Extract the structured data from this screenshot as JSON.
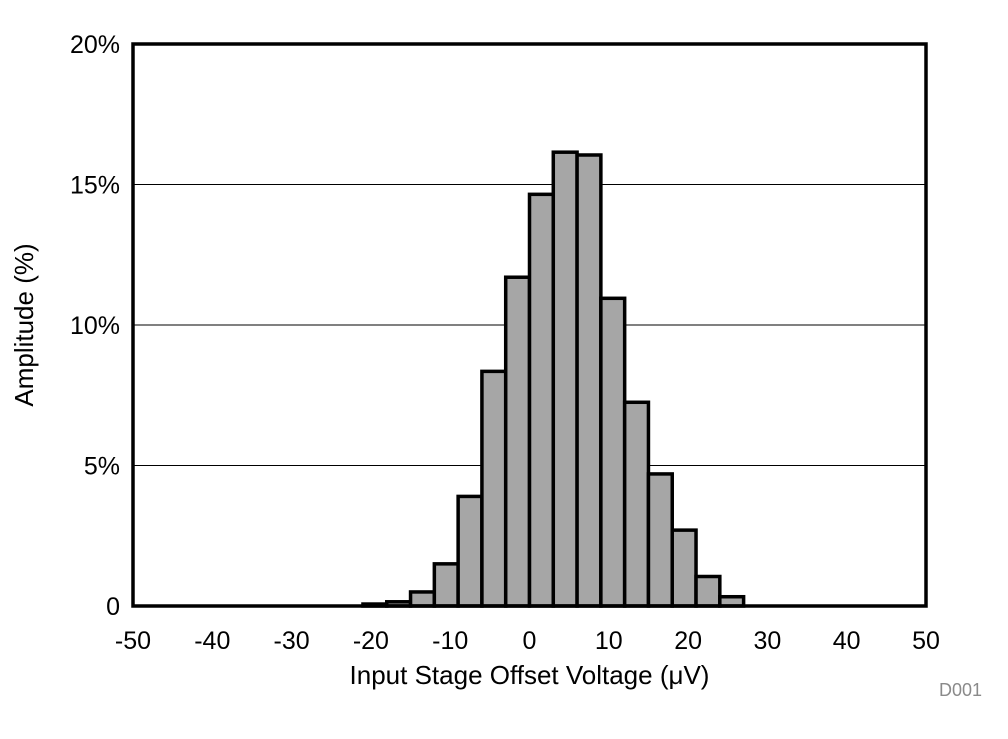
{
  "chart_data": {
    "type": "bar",
    "subtype": "histogram",
    "title": "",
    "xlabel": "Input Stage Offset Voltage (μV)",
    "ylabel": "Amplitude (%)",
    "xlim": [
      -50,
      50
    ],
    "ylim": [
      0,
      20
    ],
    "x_ticks": [
      -50,
      -40,
      -30,
      -20,
      -10,
      0,
      10,
      20,
      30,
      40,
      50
    ],
    "x_tick_labels": [
      "-50",
      "-40",
      "-30",
      "-20",
      "-10",
      "0",
      "10",
      "20",
      "30",
      "40",
      "50"
    ],
    "y_ticks": [
      0,
      5,
      10,
      15,
      20
    ],
    "y_tick_labels": [
      "0",
      "5%",
      "10%",
      "15%",
      "20%"
    ],
    "grid": {
      "y": true,
      "x": false
    },
    "legend": "none",
    "bin_width": 3,
    "bins": [
      {
        "x0": -21,
        "x1": -18,
        "value": 0.07
      },
      {
        "x0": -18,
        "x1": -15,
        "value": 0.15
      },
      {
        "x0": -15,
        "x1": -12,
        "value": 0.5
      },
      {
        "x0": -12,
        "x1": -9,
        "value": 1.5
      },
      {
        "x0": -9,
        "x1": -6,
        "value": 3.9
      },
      {
        "x0": -6,
        "x1": -3,
        "value": 8.35
      },
      {
        "x0": -3,
        "x1": 0,
        "value": 11.7
      },
      {
        "x0": 0,
        "x1": 3,
        "value": 14.65
      },
      {
        "x0": 3,
        "x1": 6,
        "value": 16.15
      },
      {
        "x0": 6,
        "x1": 9,
        "value": 16.05
      },
      {
        "x0": 9,
        "x1": 12,
        "value": 10.95
      },
      {
        "x0": 12,
        "x1": 15,
        "value": 7.25
      },
      {
        "x0": 15,
        "x1": 18,
        "value": 4.7
      },
      {
        "x0": 18,
        "x1": 21,
        "value": 2.7
      },
      {
        "x0": 21,
        "x1": 24,
        "value": 1.05
      },
      {
        "x0": 24,
        "x1": 27,
        "value": 0.33
      }
    ],
    "bar_color": "#a6a6a6",
    "bar_edge_color": "#000000",
    "grid_color": "#000000",
    "code": "D001"
  }
}
